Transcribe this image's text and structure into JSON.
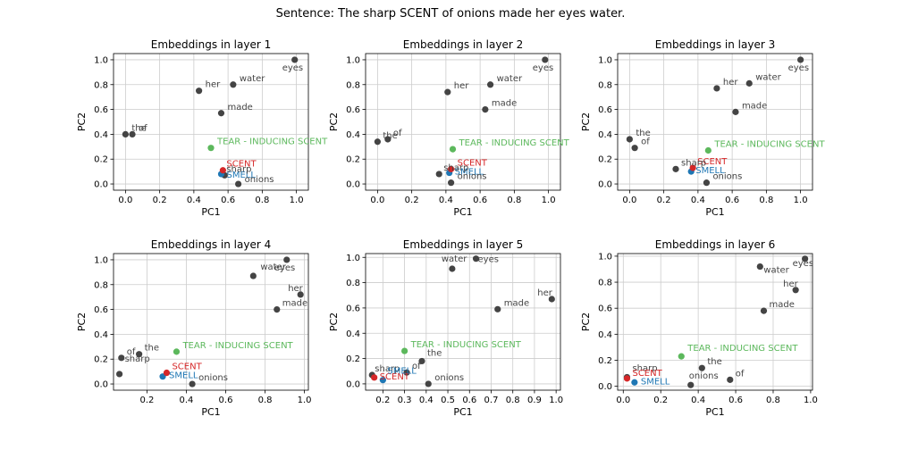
{
  "figure": {
    "title": "Sentence: The sharp SCENT of onions made her eyes water.",
    "colors": {
      "word": "#444444",
      "target": "#d62728",
      "synonym": "#1f77b4",
      "definition": "#5cb85c",
      "grid": "#cccccc"
    }
  },
  "chart_data": [
    {
      "type": "scatter",
      "title": "Embeddings in layer 1",
      "xlabel": "PC1",
      "ylabel": "PC2",
      "xlim": [
        -0.07,
        1.07
      ],
      "ylim": [
        -0.05,
        1.05
      ],
      "xticks": [
        "0.0",
        "0.2",
        "0.4",
        "0.6",
        "0.8",
        "1.0"
      ],
      "yticks": [
        "0.0",
        "0.2",
        "0.4",
        "0.6",
        "0.8",
        "1.0"
      ],
      "grid": true,
      "points": [
        {
          "label": "eyes",
          "x": 0.99,
          "y": 1.0,
          "kind": "word"
        },
        {
          "label": "water",
          "x": 0.63,
          "y": 0.8,
          "kind": "word"
        },
        {
          "label": "her",
          "x": 0.43,
          "y": 0.75,
          "kind": "word"
        },
        {
          "label": "made",
          "x": 0.56,
          "y": 0.57,
          "kind": "word"
        },
        {
          "label": "the",
          "x": 0.0,
          "y": 0.4,
          "kind": "word"
        },
        {
          "label": "of",
          "x": 0.04,
          "y": 0.4,
          "kind": "word"
        },
        {
          "label": "TEAR - INDUCING SCENT",
          "x": 0.5,
          "y": 0.29,
          "kind": "definition"
        },
        {
          "label": "SCENT",
          "x": 0.57,
          "y": 0.11,
          "kind": "target"
        },
        {
          "label": "SMELL",
          "x": 0.56,
          "y": 0.08,
          "kind": "synonym"
        },
        {
          "label": "sharp",
          "x": 0.58,
          "y": 0.07,
          "kind": "word"
        },
        {
          "label": "onions",
          "x": 0.66,
          "y": 0.0,
          "kind": "word"
        }
      ]
    },
    {
      "type": "scatter",
      "title": "Embeddings in layer 2",
      "xlabel": "PC1",
      "ylabel": "PC2",
      "xlim": [
        -0.07,
        1.07
      ],
      "ylim": [
        -0.05,
        1.05
      ],
      "xticks": [
        "0.0",
        "0.2",
        "0.4",
        "0.6",
        "0.8",
        "1.0"
      ],
      "yticks": [
        "0.0",
        "0.2",
        "0.4",
        "0.6",
        "0.8",
        "1.0"
      ],
      "grid": true,
      "points": [
        {
          "label": "eyes",
          "x": 0.98,
          "y": 1.0,
          "kind": "word"
        },
        {
          "label": "water",
          "x": 0.66,
          "y": 0.8,
          "kind": "word"
        },
        {
          "label": "her",
          "x": 0.41,
          "y": 0.74,
          "kind": "word"
        },
        {
          "label": "made",
          "x": 0.63,
          "y": 0.6,
          "kind": "word"
        },
        {
          "label": "the",
          "x": 0.0,
          "y": 0.34,
          "kind": "word"
        },
        {
          "label": "of",
          "x": 0.06,
          "y": 0.36,
          "kind": "word"
        },
        {
          "label": "TEAR - INDUCING SCENT",
          "x": 0.44,
          "y": 0.28,
          "kind": "definition"
        },
        {
          "label": "SCENT",
          "x": 0.43,
          "y": 0.12,
          "kind": "target"
        },
        {
          "label": "SMELL",
          "x": 0.42,
          "y": 0.09,
          "kind": "synonym"
        },
        {
          "label": "sharp",
          "x": 0.36,
          "y": 0.08,
          "kind": "word"
        },
        {
          "label": "onions",
          "x": 0.43,
          "y": 0.01,
          "kind": "word"
        }
      ]
    },
    {
      "type": "scatter",
      "title": "Embeddings in layer 3",
      "xlabel": "PC1",
      "ylabel": "PC2",
      "xlim": [
        -0.07,
        1.07
      ],
      "ylim": [
        -0.05,
        1.05
      ],
      "xticks": [
        "0.0",
        "0.2",
        "0.4",
        "0.6",
        "0.8",
        "1.0"
      ],
      "yticks": [
        "0.0",
        "0.2",
        "0.4",
        "0.6",
        "0.8",
        "1.0"
      ],
      "grid": true,
      "points": [
        {
          "label": "eyes",
          "x": 1.0,
          "y": 1.0,
          "kind": "word"
        },
        {
          "label": "water",
          "x": 0.7,
          "y": 0.81,
          "kind": "word"
        },
        {
          "label": "her",
          "x": 0.51,
          "y": 0.77,
          "kind": "word"
        },
        {
          "label": "made",
          "x": 0.62,
          "y": 0.58,
          "kind": "word"
        },
        {
          "label": "the",
          "x": 0.0,
          "y": 0.36,
          "kind": "word"
        },
        {
          "label": "of",
          "x": 0.03,
          "y": 0.29,
          "kind": "word"
        },
        {
          "label": "TEAR - INDUCING SCENT",
          "x": 0.46,
          "y": 0.27,
          "kind": "definition"
        },
        {
          "label": "SCENT",
          "x": 0.37,
          "y": 0.13,
          "kind": "target"
        },
        {
          "label": "SMELL",
          "x": 0.36,
          "y": 0.1,
          "kind": "synonym"
        },
        {
          "label": "sharp",
          "x": 0.27,
          "y": 0.12,
          "kind": "word"
        },
        {
          "label": "onions",
          "x": 0.45,
          "y": 0.01,
          "kind": "word"
        }
      ]
    },
    {
      "type": "scatter",
      "title": "Embeddings in layer 4",
      "xlabel": "PC1",
      "ylabel": "PC2",
      "xlim": [
        0.03,
        1.02
      ],
      "ylim": [
        -0.05,
        1.05
      ],
      "xticks": [
        "0.2",
        "0.4",
        "0.6",
        "0.8",
        "1.0"
      ],
      "yticks": [
        "0.0",
        "0.2",
        "0.4",
        "0.6",
        "0.8",
        "1.0"
      ],
      "grid": true,
      "points": [
        {
          "label": "eyes",
          "x": 0.91,
          "y": 1.0,
          "kind": "word"
        },
        {
          "label": "water",
          "x": 0.74,
          "y": 0.87,
          "kind": "word"
        },
        {
          "label": "her",
          "x": 0.98,
          "y": 0.72,
          "kind": "word"
        },
        {
          "label": "made",
          "x": 0.86,
          "y": 0.6,
          "kind": "word"
        },
        {
          "label": "the",
          "x": 0.16,
          "y": 0.24,
          "kind": "word"
        },
        {
          "label": "of",
          "x": 0.07,
          "y": 0.21,
          "kind": "word"
        },
        {
          "label": "sharp",
          "x": 0.06,
          "y": 0.08,
          "kind": "word"
        },
        {
          "label": "TEAR - INDUCING SCENT",
          "x": 0.35,
          "y": 0.26,
          "kind": "definition"
        },
        {
          "label": "SCENT",
          "x": 0.3,
          "y": 0.09,
          "kind": "target"
        },
        {
          "label": "SMELL",
          "x": 0.28,
          "y": 0.06,
          "kind": "synonym"
        },
        {
          "label": "onions",
          "x": 0.43,
          "y": 0.0,
          "kind": "word"
        }
      ]
    },
    {
      "type": "scatter",
      "title": "Embeddings in layer 5",
      "xlabel": "PC1",
      "ylabel": "PC2",
      "xlim": [
        0.12,
        1.02
      ],
      "ylim": [
        -0.05,
        1.03
      ],
      "xticks": [
        "0.2",
        "0.3",
        "0.4",
        "0.5",
        "0.6",
        "0.7",
        "0.8",
        "0.9",
        "1.0"
      ],
      "yticks": [
        "0.0",
        "0.2",
        "0.4",
        "0.6",
        "0.8",
        "1.0"
      ],
      "grid": true,
      "points": [
        {
          "label": "eyes",
          "x": 0.63,
          "y": 0.99,
          "kind": "word"
        },
        {
          "label": "water",
          "x": 0.52,
          "y": 0.91,
          "kind": "word"
        },
        {
          "label": "her",
          "x": 0.98,
          "y": 0.67,
          "kind": "word"
        },
        {
          "label": "made",
          "x": 0.73,
          "y": 0.59,
          "kind": "word"
        },
        {
          "label": "TEAR - INDUCING SCENT",
          "x": 0.3,
          "y": 0.26,
          "kind": "definition"
        },
        {
          "label": "the",
          "x": 0.38,
          "y": 0.18,
          "kind": "word"
        },
        {
          "label": "of",
          "x": 0.31,
          "y": 0.09,
          "kind": "word"
        },
        {
          "label": "sharp",
          "x": 0.15,
          "y": 0.07,
          "kind": "word"
        },
        {
          "label": "SCENT",
          "x": 0.16,
          "y": 0.05,
          "kind": "target"
        },
        {
          "label": "SMELL",
          "x": 0.2,
          "y": 0.03,
          "kind": "synonym"
        },
        {
          "label": "onions",
          "x": 0.41,
          "y": 0.0,
          "kind": "word"
        }
      ]
    },
    {
      "type": "scatter",
      "title": "Embeddings in layer 6",
      "xlabel": "PC1",
      "ylabel": "PC2",
      "xlim": [
        -0.03,
        1.01
      ],
      "ylim": [
        -0.03,
        1.02
      ],
      "xticks": [
        "0.0",
        "0.2",
        "0.4",
        "0.6",
        "0.8",
        "1.0"
      ],
      "yticks": [
        "0.0",
        "0.2",
        "0.4",
        "0.6",
        "0.8",
        "1.0"
      ],
      "grid": true,
      "points": [
        {
          "label": "eyes",
          "x": 0.97,
          "y": 0.98,
          "kind": "word"
        },
        {
          "label": "water",
          "x": 0.73,
          "y": 0.92,
          "kind": "word"
        },
        {
          "label": "her",
          "x": 0.92,
          "y": 0.74,
          "kind": "word"
        },
        {
          "label": "made",
          "x": 0.75,
          "y": 0.58,
          "kind": "word"
        },
        {
          "label": "TEAR - INDUCING SCENT",
          "x": 0.31,
          "y": 0.23,
          "kind": "definition"
        },
        {
          "label": "the",
          "x": 0.42,
          "y": 0.14,
          "kind": "word"
        },
        {
          "label": "of",
          "x": 0.57,
          "y": 0.05,
          "kind": "word"
        },
        {
          "label": "onions",
          "x": 0.36,
          "y": 0.01,
          "kind": "word"
        },
        {
          "label": "sharp",
          "x": 0.02,
          "y": 0.07,
          "kind": "word"
        },
        {
          "label": "SCENT",
          "x": 0.02,
          "y": 0.06,
          "kind": "target"
        },
        {
          "label": "SMELL",
          "x": 0.06,
          "y": 0.03,
          "kind": "synonym"
        }
      ]
    }
  ]
}
